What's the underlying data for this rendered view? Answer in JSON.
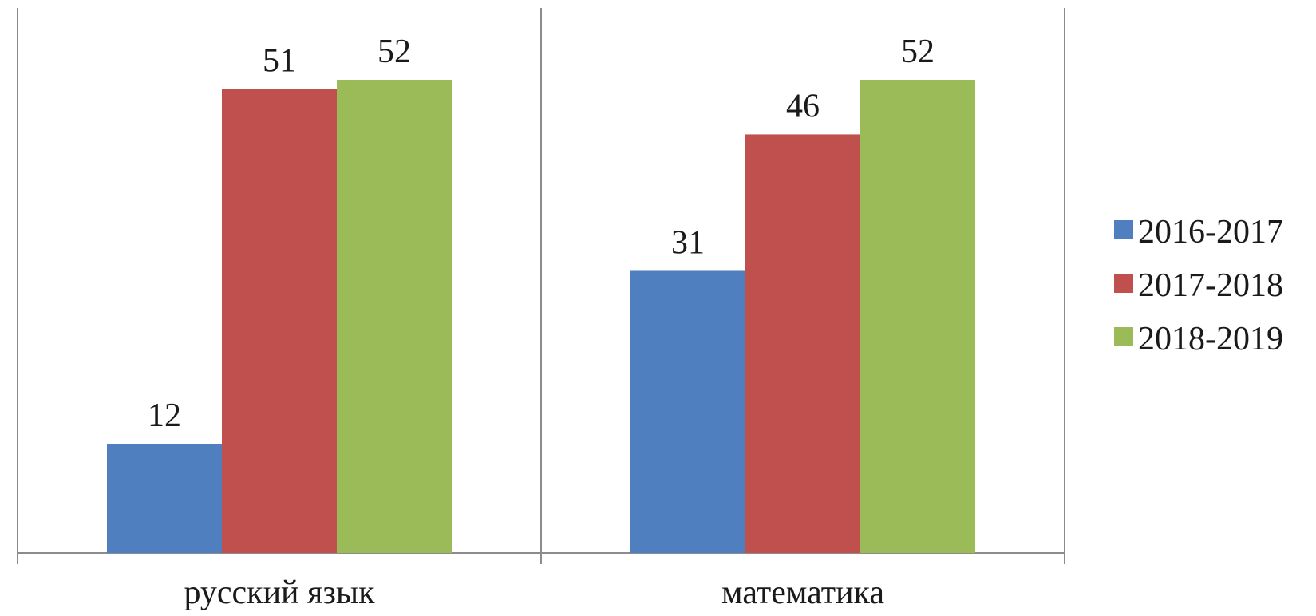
{
  "chart_data": {
    "type": "bar",
    "categories": [
      "русский язык",
      "математика"
    ],
    "series": [
      {
        "name": "2016-2017",
        "color": "#4f7fbf",
        "values": [
          12,
          31
        ]
      },
      {
        "name": "2017-2018",
        "color": "#c0504d",
        "values": [
          51,
          46
        ]
      },
      {
        "name": "2018-2019",
        "color": "#9bbb59",
        "values": [
          52,
          52
        ]
      }
    ],
    "ylim": [
      0,
      60
    ],
    "grid": false,
    "data_labels": true,
    "legend_position": "right",
    "title": "",
    "xlabel": "",
    "ylabel": ""
  }
}
